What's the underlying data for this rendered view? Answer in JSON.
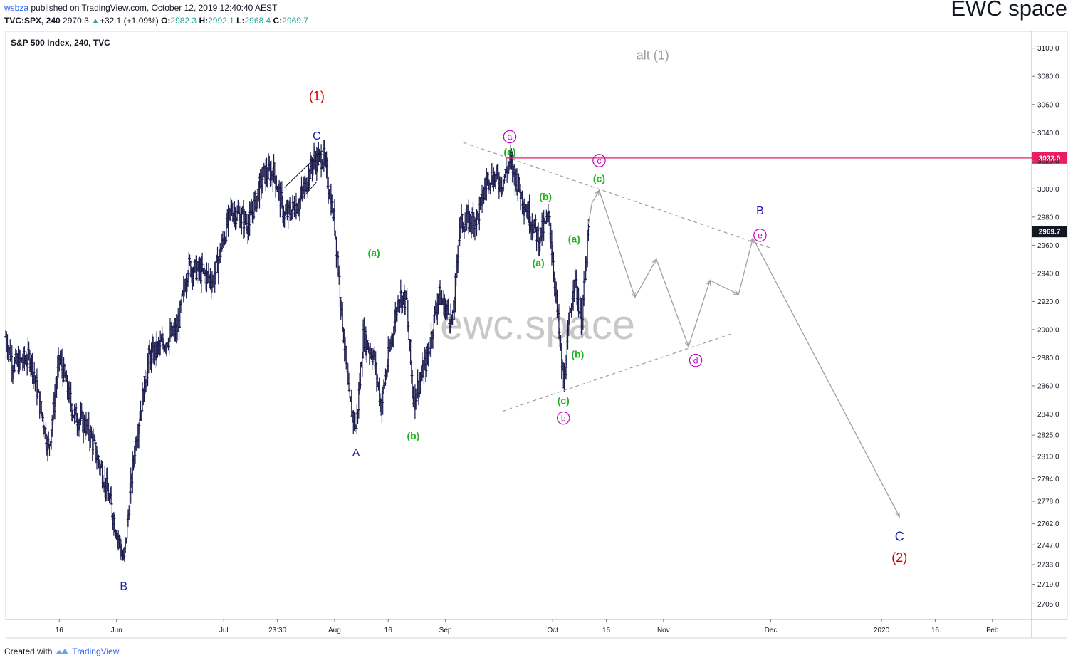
{
  "header": {
    "user": "wsbza",
    "published": "published on TradingView.com, October 12, 2019 12:40:40 AEST",
    "symbol": "TVC:SPX, 240",
    "last": "2970.3",
    "change": "+32.1 (+1.09%)",
    "o_label": "O:",
    "o_value": "2982.3",
    "h_label": "H:",
    "h_value": "2992.1",
    "l_label": "L:",
    "l_value": "2968.4",
    "c_label": "C:",
    "c_value": "2969.7"
  },
  "brand": "EWC space",
  "watermark": "ewc.space",
  "footer": {
    "created_with": "Created with",
    "tradingview": "TradingView"
  },
  "colors": {
    "candle": "#1c1c4e",
    "red": "#cc0000",
    "blue": "#1a1aa8",
    "green": "#1db41d",
    "magenta": "#c000c0",
    "grey": "#9e9e9e",
    "hline": "#e91e63",
    "price_tag": "#131722"
  },
  "chart_data": {
    "type": "ohlc",
    "title": "S&P 500 Index, 240, TVC",
    "ylim": [
      2694,
      3112
    ],
    "y_ticks": [
      3100.0,
      3080.0,
      3060.0,
      3040.0,
      3020.0,
      3000.0,
      2980.0,
      2960.0,
      2940.0,
      2920.0,
      2900.0,
      2880.0,
      2860.0,
      2840.0,
      2825.0,
      2810.0,
      2794.0,
      2778.0,
      2762.0,
      2747.0,
      2733.0,
      2719.0,
      2705.0
    ],
    "x_ticks": [
      {
        "label": "16",
        "date": "2019-05-16"
      },
      {
        "label": "Jun",
        "date": "2019-06-01"
      },
      {
        "label": "Jul",
        "date": "2019-07-01"
      },
      {
        "label": "23:30",
        "date": "2019-07-16"
      },
      {
        "label": "Aug",
        "date": "2019-08-01"
      },
      {
        "label": "16",
        "date": "2019-08-16"
      },
      {
        "label": "Sep",
        "date": "2019-09-01"
      },
      {
        "label": "Oct",
        "date": "2019-10-01"
      },
      {
        "label": "16",
        "date": "2019-10-16"
      },
      {
        "label": "Nov",
        "date": "2019-11-01"
      },
      {
        "label": "Dec",
        "date": "2019-12-01"
      },
      {
        "label": "2020",
        "date": "2020-01-01"
      },
      {
        "label": "16",
        "date": "2020-01-16"
      },
      {
        "label": "Feb",
        "date": "2020-02-01"
      }
    ],
    "price_lines": [
      {
        "label": "3022.0",
        "value": 3022.0,
        "color": "#e91e63"
      },
      {
        "label": "2969.7",
        "value": 2969.7,
        "color": "#131722"
      }
    ],
    "path_points": [
      [
        "2019-05-01",
        2895
      ],
      [
        "2019-05-03",
        2875
      ],
      [
        "2019-05-08",
        2880
      ],
      [
        "2019-05-13",
        2815
      ],
      [
        "2019-05-16",
        2880
      ],
      [
        "2019-05-20",
        2840
      ],
      [
        "2019-05-24",
        2830
      ],
      [
        "2019-05-29",
        2790
      ],
      [
        "2019-06-03",
        2735
      ],
      [
        "2019-06-06",
        2815
      ],
      [
        "2019-06-10",
        2880
      ],
      [
        "2019-06-14",
        2890
      ],
      [
        "2019-06-18",
        2900
      ],
      [
        "2019-06-21",
        2945
      ],
      [
        "2019-06-25",
        2940
      ],
      [
        "2019-06-28",
        2935
      ],
      [
        "2019-07-03",
        2985
      ],
      [
        "2019-07-08",
        2975
      ],
      [
        "2019-07-12",
        3010
      ],
      [
        "2019-07-15",
        3012
      ],
      [
        "2019-07-18",
        2980
      ],
      [
        "2019-07-22",
        2990
      ],
      [
        "2019-07-26",
        3020
      ],
      [
        "2019-07-29",
        3022
      ],
      [
        "2019-08-01",
        2975
      ],
      [
        "2019-08-05",
        2850
      ],
      [
        "2019-08-07",
        2830
      ],
      [
        "2019-08-09",
        2895
      ],
      [
        "2019-08-12",
        2880
      ],
      [
        "2019-08-14",
        2845
      ],
      [
        "2019-08-16",
        2880
      ],
      [
        "2019-08-19",
        2925
      ],
      [
        "2019-08-21",
        2920
      ],
      [
        "2019-08-23",
        2850
      ],
      [
        "2019-08-27",
        2880
      ],
      [
        "2019-08-30",
        2925
      ],
      [
        "2019-09-03",
        2905
      ],
      [
        "2019-09-05",
        2975
      ],
      [
        "2019-09-10",
        2980
      ],
      [
        "2019-09-13",
        3010
      ],
      [
        "2019-09-17",
        3005
      ],
      [
        "2019-09-19",
        3020
      ],
      [
        "2019-09-23",
        2990
      ],
      [
        "2019-09-27",
        2965
      ],
      [
        "2019-09-30",
        2980
      ],
      [
        "2019-10-03",
        2890
      ],
      [
        "2019-10-04",
        2860
      ],
      [
        "2019-10-07",
        2940
      ],
      [
        "2019-10-09",
        2905
      ],
      [
        "2019-10-10",
        2935
      ],
      [
        "2019-10-11",
        2970
      ]
    ],
    "projection": [
      [
        "2019-10-11",
        2975
      ],
      [
        "2019-10-12",
        2990
      ],
      [
        "2019-10-14",
        2999
      ],
      [
        "2019-10-24",
        2923
      ],
      [
        "2019-10-30",
        2950
      ],
      [
        "2019-11-08",
        2888
      ],
      [
        "2019-11-14",
        2935
      ],
      [
        "2019-11-22",
        2925
      ],
      [
        "2019-11-26",
        2965
      ],
      [
        "2020-01-06",
        2767
      ]
    ],
    "channel_top": [
      [
        "2019-09-06",
        3033
      ],
      [
        "2019-12-01",
        2958
      ]
    ],
    "channel_bottom": [
      [
        "2019-09-17",
        2842
      ],
      [
        "2019-11-20",
        2897
      ]
    ],
    "wedge_lines": [
      [
        [
          "2019-07-18",
          3001
        ],
        [
          "2019-07-29",
          3028
        ]
      ],
      [
        [
          "2019-07-20",
          2985
        ],
        [
          "2019-07-27",
          3005
        ]
      ]
    ],
    "labels": [
      {
        "text": "(1)",
        "date": "2019-07-27",
        "price": 3063,
        "color": "red",
        "size": 18
      },
      {
        "text": "C",
        "date": "2019-07-27",
        "price": 3035,
        "color": "blue",
        "size": 16
      },
      {
        "text": "B",
        "date": "2019-06-03",
        "price": 2715,
        "color": "blue",
        "size": 16
      },
      {
        "text": "A",
        "date": "2019-08-07",
        "price": 2810,
        "color": "blue",
        "size": 16
      },
      {
        "text": "(a)",
        "date": "2019-08-12",
        "price": 2952,
        "color": "green",
        "size": 14
      },
      {
        "text": "(b)",
        "date": "2019-08-23",
        "price": 2822,
        "color": "green",
        "size": 14
      },
      {
        "text": "(c)",
        "date": "2019-09-19",
        "price": 3024,
        "color": "green",
        "size": 14
      },
      {
        "text": "a",
        "date": "2019-09-19",
        "price": 3035,
        "color": "magenta",
        "size": 12,
        "circle": true
      },
      {
        "text": "(b)",
        "date": "2019-09-29",
        "price": 2992,
        "color": "green",
        "size": 14
      },
      {
        "text": "(a)",
        "date": "2019-09-27",
        "price": 2945,
        "color": "green",
        "size": 14
      },
      {
        "text": "(c)",
        "date": "2019-10-04",
        "price": 2847,
        "color": "green",
        "size": 14
      },
      {
        "text": "b",
        "date": "2019-10-04",
        "price": 2835,
        "color": "magenta",
        "size": 12,
        "circle": true
      },
      {
        "text": "(a)",
        "date": "2019-10-07",
        "price": 2962,
        "color": "green",
        "size": 14
      },
      {
        "text": "(b)",
        "date": "2019-10-08",
        "price": 2880,
        "color": "green",
        "size": 14
      },
      {
        "text": "c",
        "date": "2019-10-14",
        "price": 3018,
        "color": "magenta",
        "size": 12,
        "circle": true
      },
      {
        "text": "(c)",
        "date": "2019-10-14",
        "price": 3005,
        "color": "green",
        "size": 14
      },
      {
        "text": "d",
        "date": "2019-11-10",
        "price": 2876,
        "color": "magenta",
        "size": 12,
        "circle": true
      },
      {
        "text": "B",
        "date": "2019-11-28",
        "price": 2982,
        "color": "blue",
        "size": 16
      },
      {
        "text": "e",
        "date": "2019-11-28",
        "price": 2965,
        "color": "magenta",
        "size": 12,
        "circle": true
      },
      {
        "text": "C",
        "date": "2020-01-06",
        "price": 2750,
        "color": "blue",
        "size": 18
      },
      {
        "text": "(2)",
        "date": "2020-01-06",
        "price": 2735,
        "color": "red",
        "size": 18
      },
      {
        "text": "alt (1)",
        "date": "2019-10-29",
        "price": 3092,
        "color": "grey",
        "size": 18
      }
    ]
  }
}
